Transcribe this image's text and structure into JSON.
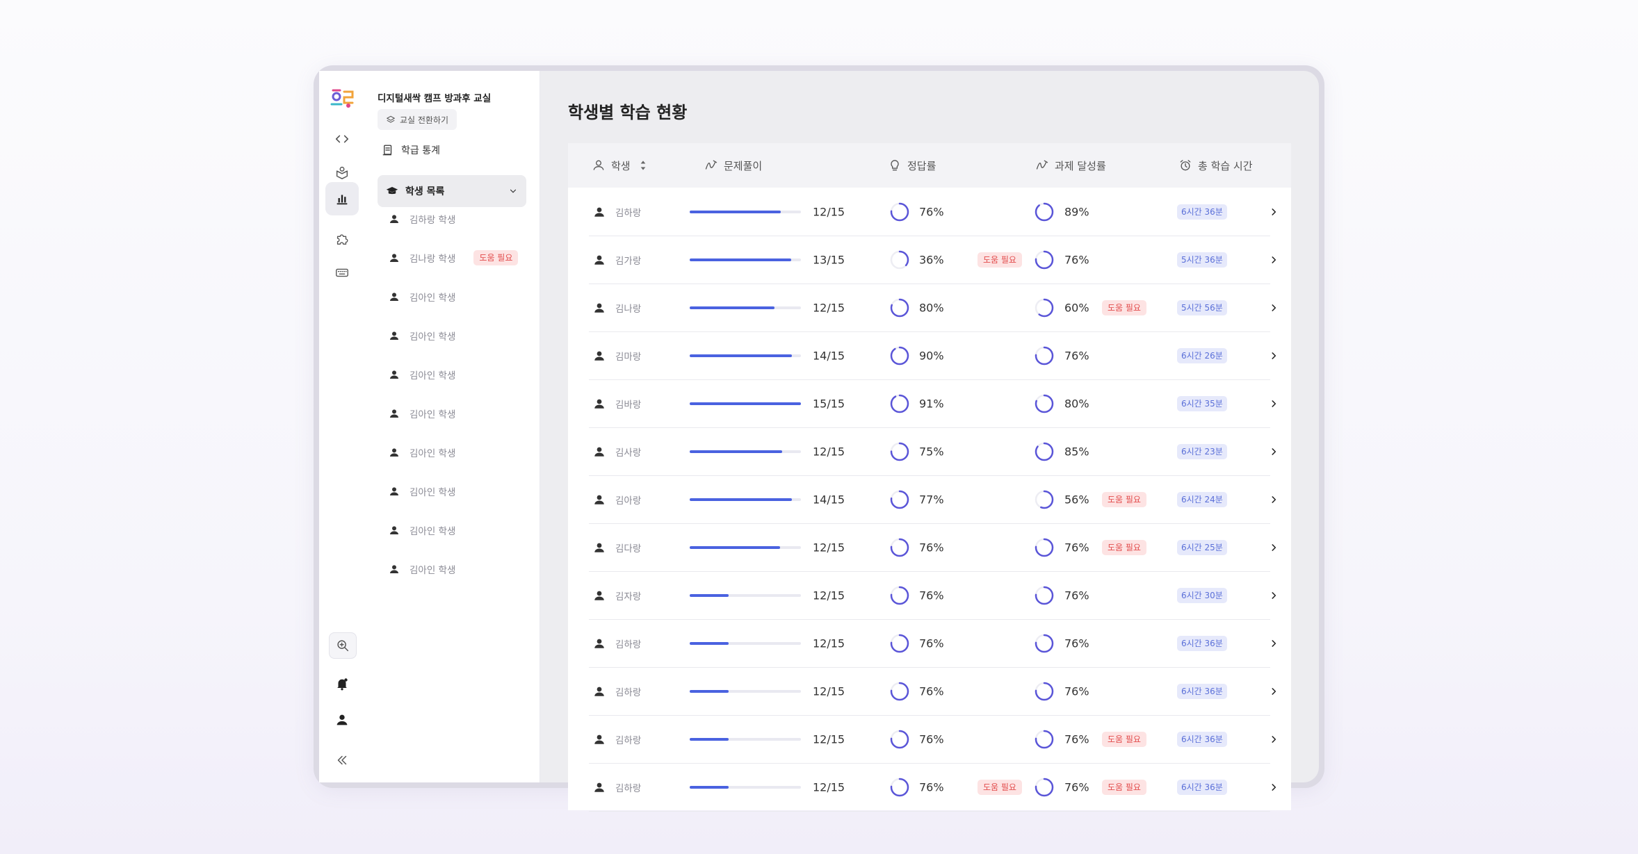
{
  "sidebar": {
    "title": "디지털새싹 캠프 방과후 교실",
    "switch_label": "교실 전환하기",
    "stats_label": "학급 통계",
    "list_label": "학생 목록",
    "students": [
      {
        "label": "김하랑 학생",
        "help": ""
      },
      {
        "label": "김나랑 학생",
        "help": "도움 필요"
      },
      {
        "label": "김아인 학생",
        "help": ""
      },
      {
        "label": "김아인 학생",
        "help": ""
      },
      {
        "label": "김아인 학생",
        "help": ""
      },
      {
        "label": "김아인 학생",
        "help": ""
      },
      {
        "label": "김아인 학생",
        "help": ""
      },
      {
        "label": "김아인 학생",
        "help": ""
      },
      {
        "label": "김아인 학생",
        "help": ""
      },
      {
        "label": "김아인 학생",
        "help": ""
      }
    ]
  },
  "rail": {
    "icons": [
      "code-icon",
      "box-icon",
      "chart-icon",
      "puzzle-icon",
      "keyboard-icon"
    ],
    "bottom_icons": [
      "zoom-icon",
      "bell-icon",
      "user-icon",
      "collapse-icon"
    ]
  },
  "main": {
    "title": "학생별 학습 현황",
    "columns": {
      "student": "학생",
      "solve": "문제풀이",
      "accuracy": "정답률",
      "task": "과제 달성률",
      "time": "총 학습 시간"
    },
    "rows": [
      {
        "name": "김하랑",
        "progress": 0.82,
        "count": "12/15",
        "acc": "76%",
        "acc_value": 0.76,
        "acc_help": "",
        "task": "89%",
        "task_value": 0.89,
        "task_help": "",
        "time": "6시간 36분"
      },
      {
        "name": "김가랑",
        "progress": 0.91,
        "count": "13/15",
        "acc": "36%",
        "acc_value": 0.36,
        "acc_help": "도움 필요",
        "task": "76%",
        "task_value": 0.76,
        "task_help": "",
        "time": "5시간 36분"
      },
      {
        "name": "김나랑",
        "progress": 0.76,
        "count": "12/15",
        "acc": "80%",
        "acc_value": 0.8,
        "acc_help": "",
        "task": "60%",
        "task_value": 0.6,
        "task_help": "도움 필요",
        "time": "5시간 56분"
      },
      {
        "name": "김마랑",
        "progress": 0.92,
        "count": "14/15",
        "acc": "90%",
        "acc_value": 0.9,
        "acc_help": "",
        "task": "76%",
        "task_value": 0.76,
        "task_help": "",
        "time": "6시간 26분"
      },
      {
        "name": "김바랑",
        "progress": 1.0,
        "count": "15/15",
        "acc": "91%",
        "acc_value": 0.91,
        "acc_help": "",
        "task": "80%",
        "task_value": 0.8,
        "task_help": "",
        "time": "6시간 35분"
      },
      {
        "name": "김사랑",
        "progress": 0.83,
        "count": "12/15",
        "acc": "75%",
        "acc_value": 0.75,
        "acc_help": "",
        "task": "85%",
        "task_value": 0.85,
        "task_help": "",
        "time": "6시간 23분"
      },
      {
        "name": "김아랑",
        "progress": 0.92,
        "count": "14/15",
        "acc": "77%",
        "acc_value": 0.77,
        "acc_help": "",
        "task": "56%",
        "task_value": 0.56,
        "task_help": "도움 필요",
        "time": "6시간 24분"
      },
      {
        "name": "김다랑",
        "progress": 0.81,
        "count": "12/15",
        "acc": "76%",
        "acc_value": 0.76,
        "acc_help": "",
        "task": "76%",
        "task_value": 0.76,
        "task_help": "도움 필요",
        "time": "6시간 25분"
      },
      {
        "name": "김자랑",
        "progress": 0.35,
        "count": "12/15",
        "acc": "76%",
        "acc_value": 0.76,
        "acc_help": "",
        "task": "76%",
        "task_value": 0.76,
        "task_help": "",
        "time": "6시간 30분"
      },
      {
        "name": "김하랑",
        "progress": 0.35,
        "count": "12/15",
        "acc": "76%",
        "acc_value": 0.76,
        "acc_help": "",
        "task": "76%",
        "task_value": 0.76,
        "task_help": "",
        "time": "6시간 36분"
      },
      {
        "name": "김하랑",
        "progress": 0.35,
        "count": "12/15",
        "acc": "76%",
        "acc_value": 0.76,
        "acc_help": "",
        "task": "76%",
        "task_value": 0.76,
        "task_help": "",
        "time": "6시간 36분"
      },
      {
        "name": "김하랑",
        "progress": 0.35,
        "count": "12/15",
        "acc": "76%",
        "acc_value": 0.76,
        "acc_help": "",
        "task": "76%",
        "task_value": 0.76,
        "task_help": "도움 필요",
        "time": "6시간 36분"
      },
      {
        "name": "김하랑",
        "progress": 0.35,
        "count": "12/15",
        "acc": "76%",
        "acc_value": 0.76,
        "acc_help": "도움 필요",
        "task": "76%",
        "task_value": 0.76,
        "task_help": "도움 필요",
        "time": "6시간 36분"
      }
    ]
  },
  "colors": {
    "accent": "#4a62e0",
    "ring": "#5a55d8",
    "help_bg": "#fde3e3",
    "help_fg": "#e24b4b"
  }
}
